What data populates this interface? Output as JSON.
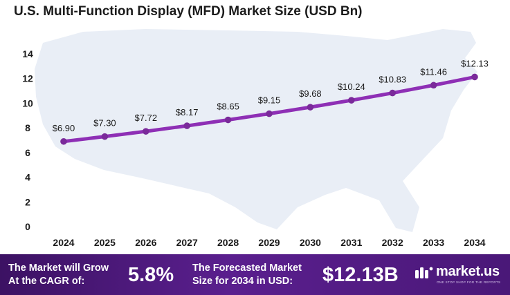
{
  "chart_data": {
    "type": "line",
    "title": "U.S. Multi-Function Display (MFD) Market Size (USD Bn)",
    "xlabel": "",
    "ylabel": "",
    "categories": [
      "2024",
      "2025",
      "2026",
      "2027",
      "2028",
      "2029",
      "2030",
      "2031",
      "2032",
      "2033",
      "2034"
    ],
    "values": [
      6.9,
      7.3,
      7.72,
      8.17,
      8.65,
      9.15,
      9.68,
      10.24,
      10.83,
      11.46,
      12.13
    ],
    "data_labels": [
      "$6.90",
      "$7.30",
      "$7.72",
      "$8.17",
      "$8.65",
      "$9.15",
      "$9.68",
      "$10.24",
      "$10.83",
      "$11.46",
      "$12.13"
    ],
    "ylim": [
      0,
      14
    ],
    "yticks": [
      0,
      2,
      4,
      6,
      8,
      10,
      12,
      14
    ],
    "grid": false,
    "legend": "none",
    "line_color": "#8e2fb5",
    "marker_color": "#7a2a9a",
    "background_map_color": "#e9eef6"
  },
  "footer": {
    "cagr_label_line1": "The Market will Grow",
    "cagr_label_line2": "At the CAGR of:",
    "cagr_value": "5.8%",
    "forecast_label_line1": "The Forecasted Market",
    "forecast_label_line2": "Size for 2034 in USD:",
    "forecast_value": "$12.13B",
    "brand": "market.us",
    "brand_tagline": "ONE STOP SHOP FOR THE REPORTS",
    "background_color": "#4a1878"
  }
}
